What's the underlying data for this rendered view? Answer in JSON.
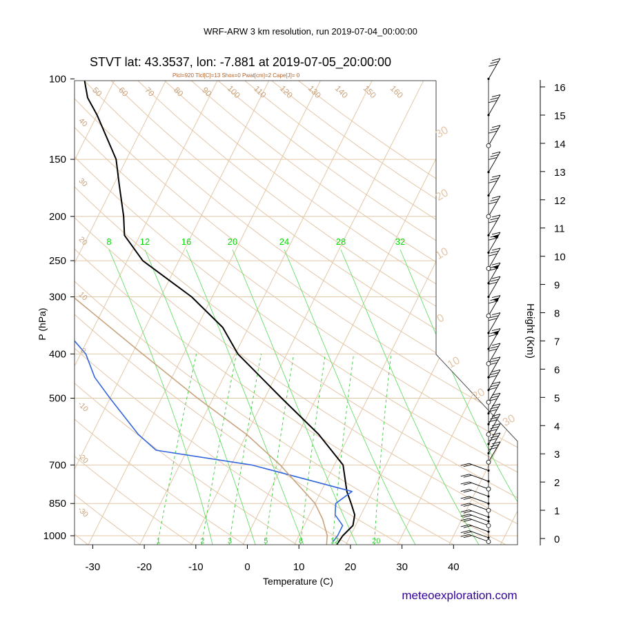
{
  "header": {
    "run_title": "WRF-ARW 3 km resolution, run 2019-07-04_00:00:00",
    "station_title": "STVT lat: 43.3537, lon: -7.881 at 2019-07-05_20:00:00",
    "indices": "Plcl=920 Tlcl[C]=13 Shox=0 Pwat[cm]=2 Cape[J]= 0"
  },
  "footer": {
    "credit": "meteoexploration.com"
  },
  "chart_data": {
    "type": "line",
    "subtype": "skew-T log-p sounding",
    "xlabel": "Temperature (C)",
    "ylabel": "P (hPa)",
    "y2label": "Height (Km)",
    "xlim": [
      -33,
      50
    ],
    "ylim_hpa": [
      1050,
      100
    ],
    "x_ticks": [
      "-30",
      "-20",
      "-10",
      "0",
      "10",
      "20",
      "30",
      "40"
    ],
    "pressure_ticks": [
      {
        "p": 100,
        "label": "100"
      },
      {
        "p": 150,
        "label": "150"
      },
      {
        "p": 200,
        "label": "200"
      },
      {
        "p": 250,
        "label": "250"
      },
      {
        "p": 300,
        "label": "300"
      },
      {
        "p": 400,
        "label": "400"
      },
      {
        "p": 500,
        "label": "500"
      },
      {
        "p": 700,
        "label": "700"
      },
      {
        "p": 850,
        "label": "850"
      },
      {
        "p": 1000,
        "label": "1000"
      }
    ],
    "height_ticks_km": [
      "0",
      "1",
      "2",
      "3",
      "4",
      "5",
      "6",
      "7",
      "8",
      "9",
      "10",
      "11",
      "12",
      "13",
      "14",
      "15",
      "16"
    ],
    "isotherm_labels": [
      "50",
      "60",
      "70",
      "80",
      "90",
      "100",
      "110",
      "120",
      "130",
      "140",
      "150",
      "160"
    ],
    "dry_adiabat_labels": [
      "40",
      "30",
      "20",
      "10",
      "0",
      "-10",
      "-20",
      "-30"
    ],
    "thetae_labels": [
      "30",
      "20",
      "10",
      "0",
      "10",
      "20",
      "30"
    ],
    "mixing_ratio_labels": [
      "1",
      "2",
      "3",
      "5",
      "8",
      "12",
      "20"
    ],
    "green_curve_labels": [
      "8",
      "12",
      "16",
      "20",
      "24",
      "28",
      "32"
    ],
    "colors": {
      "temperature": "#000000",
      "dewpoint": "#3366dd",
      "parcel": "#c8a27c",
      "background_lines": "#e3c6a6",
      "green_lines": "#00dd00",
      "credit": "#330099"
    },
    "series": [
      {
        "kind": "temperature",
        "points": [
          [
            1050,
            18.2
          ],
          [
            1000,
            18.5
          ],
          [
            950,
            19.5
          ],
          [
            900,
            18.8
          ],
          [
            850,
            17
          ],
          [
            800,
            15
          ],
          [
            700,
            11.7
          ],
          [
            600,
            4
          ],
          [
            500,
            -6.7
          ],
          [
            400,
            -19.5
          ],
          [
            350,
            -25
          ],
          [
            300,
            -34
          ],
          [
            250,
            -47
          ],
          [
            220,
            -53
          ],
          [
            200,
            -55
          ],
          [
            170,
            -59
          ],
          [
            150,
            -62
          ],
          [
            120,
            -70
          ],
          [
            110,
            -73.5
          ],
          [
            100,
            -76
          ]
        ]
      },
      {
        "kind": "dewpoint",
        "points": [
          [
            1030,
            17.2
          ],
          [
            1000,
            17.5
          ],
          [
            950,
            17.5
          ],
          [
            900,
            15
          ],
          [
            850,
            14
          ],
          [
            800,
            16
          ],
          [
            700,
            -6
          ],
          [
            650,
            -26
          ],
          [
            600,
            -31
          ],
          [
            500,
            -40
          ],
          [
            450,
            -45
          ],
          [
            400,
            -49
          ],
          [
            350,
            -56
          ],
          [
            300,
            -64
          ],
          [
            250,
            -70
          ],
          [
            200,
            -76
          ],
          [
            170,
            -83
          ],
          [
            150,
            -89
          ],
          [
            120,
            -94
          ],
          [
            100,
            -96
          ]
        ]
      },
      {
        "kind": "parcel",
        "points": [
          [
            1050,
            16.3
          ],
          [
            1000,
            15.5
          ],
          [
            920,
            13
          ],
          [
            850,
            10
          ],
          [
            700,
            -0.5
          ],
          [
            600,
            -10
          ],
          [
            500,
            -23
          ],
          [
            400,
            -38
          ],
          [
            300,
            -57
          ],
          [
            250,
            -72
          ],
          [
            230,
            -80
          ],
          [
            200,
            -80
          ],
          [
            150,
            -82
          ],
          [
            120,
            -84
          ],
          [
            100,
            -86
          ]
        ]
      }
    ],
    "wind_levels_hpa": [
      1030,
      1010,
      980,
      950,
      930,
      910,
      880,
      850,
      820,
      790,
      760,
      720,
      690,
      660,
      630,
      600,
      570,
      540,
      510,
      480,
      450,
      420,
      390,
      360,
      330,
      300,
      280,
      260,
      240,
      220,
      200,
      180,
      160,
      140,
      120,
      100
    ]
  }
}
